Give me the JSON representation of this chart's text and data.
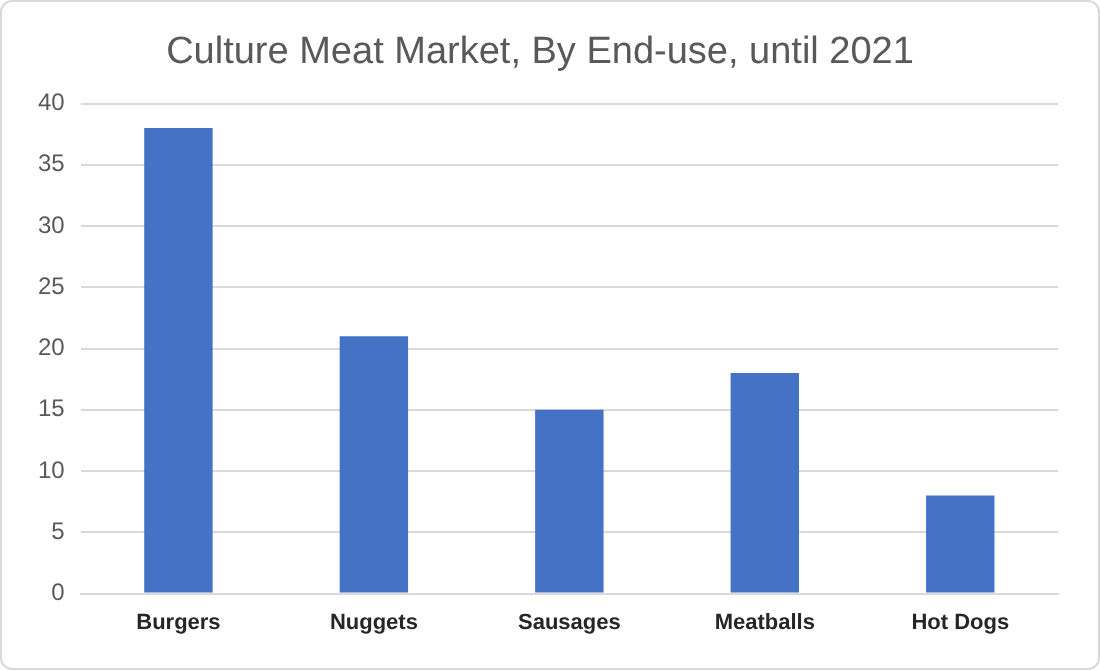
{
  "chart_data": {
    "type": "bar",
    "title": "Culture Meat Market, By End-use, until 2021",
    "categories": [
      "Burgers",
      "Nuggets",
      "Sausages",
      "Meatballs",
      "Hot Dogs"
    ],
    "values": [
      38,
      21,
      15,
      18,
      8
    ],
    "color": "#4472c4",
    "ylim": [
      0,
      40
    ],
    "yticks": [
      0,
      5,
      10,
      15,
      20,
      25,
      30,
      35,
      40
    ],
    "grid": "y"
  }
}
